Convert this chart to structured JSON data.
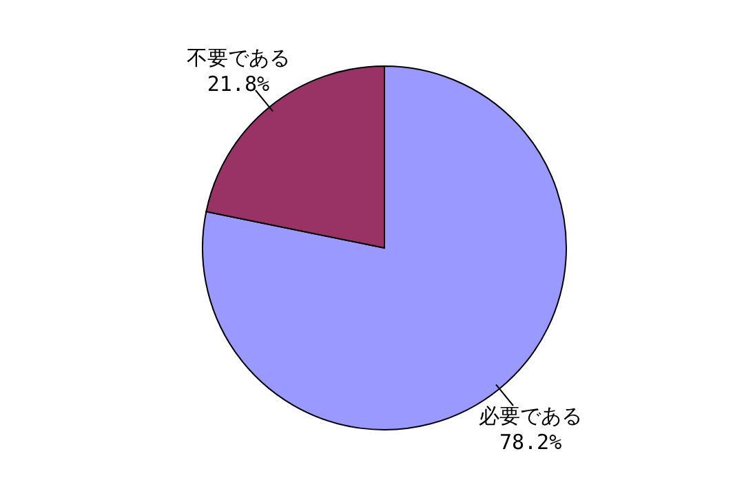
{
  "chart_data": {
    "type": "pie",
    "categories": [
      "必要である",
      "不要である"
    ],
    "values": [
      78.2,
      21.8
    ],
    "colors": [
      "#9999ff",
      "#993366"
    ],
    "value_labels": [
      "78.2%",
      "21.8%"
    ]
  }
}
